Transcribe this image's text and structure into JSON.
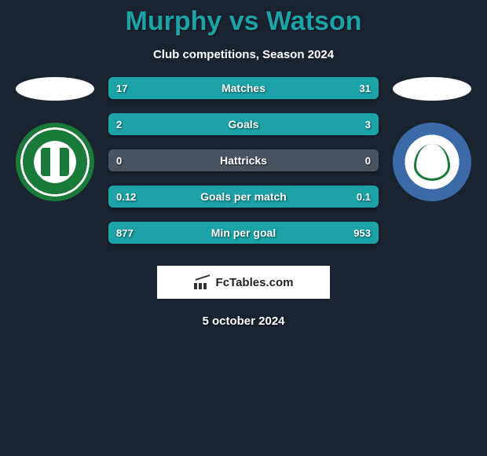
{
  "header": {
    "title": "Murphy vs Watson",
    "subtitle": "Club competitions, Season 2024"
  },
  "colors": {
    "background": "#1a2330",
    "accent": "#1ba3a8",
    "bar_bg": "#4a5360",
    "text": "#ffffff"
  },
  "players": {
    "left": {
      "name": "Murphy",
      "club_badge": "bray-wanderers"
    },
    "right": {
      "name": "Watson",
      "club_badge": "finn-harps"
    }
  },
  "stats": [
    {
      "label": "Matches",
      "left_value": "17",
      "right_value": "31",
      "left_pct": 35,
      "right_pct": 65
    },
    {
      "label": "Goals",
      "left_value": "2",
      "right_value": "3",
      "left_pct": 40,
      "right_pct": 60
    },
    {
      "label": "Hattricks",
      "left_value": "0",
      "right_value": "0",
      "left_pct": 0,
      "right_pct": 0
    },
    {
      "label": "Goals per match",
      "left_value": "0.12",
      "right_value": "0.1",
      "left_pct": 55,
      "right_pct": 45
    },
    {
      "label": "Min per goal",
      "left_value": "877",
      "right_value": "953",
      "left_pct": 48,
      "right_pct": 52
    }
  ],
  "footer": {
    "brand": "FcTables.com",
    "date": "5 october 2024"
  },
  "styling": {
    "title_fontsize": 34,
    "subtitle_fontsize": 15,
    "stat_row_height": 28,
    "stat_row_gap": 18,
    "stat_label_fontsize": 14,
    "stat_value_fontsize": 13,
    "brand_box_bg": "#ffffff",
    "brand_text_color": "#222222"
  }
}
